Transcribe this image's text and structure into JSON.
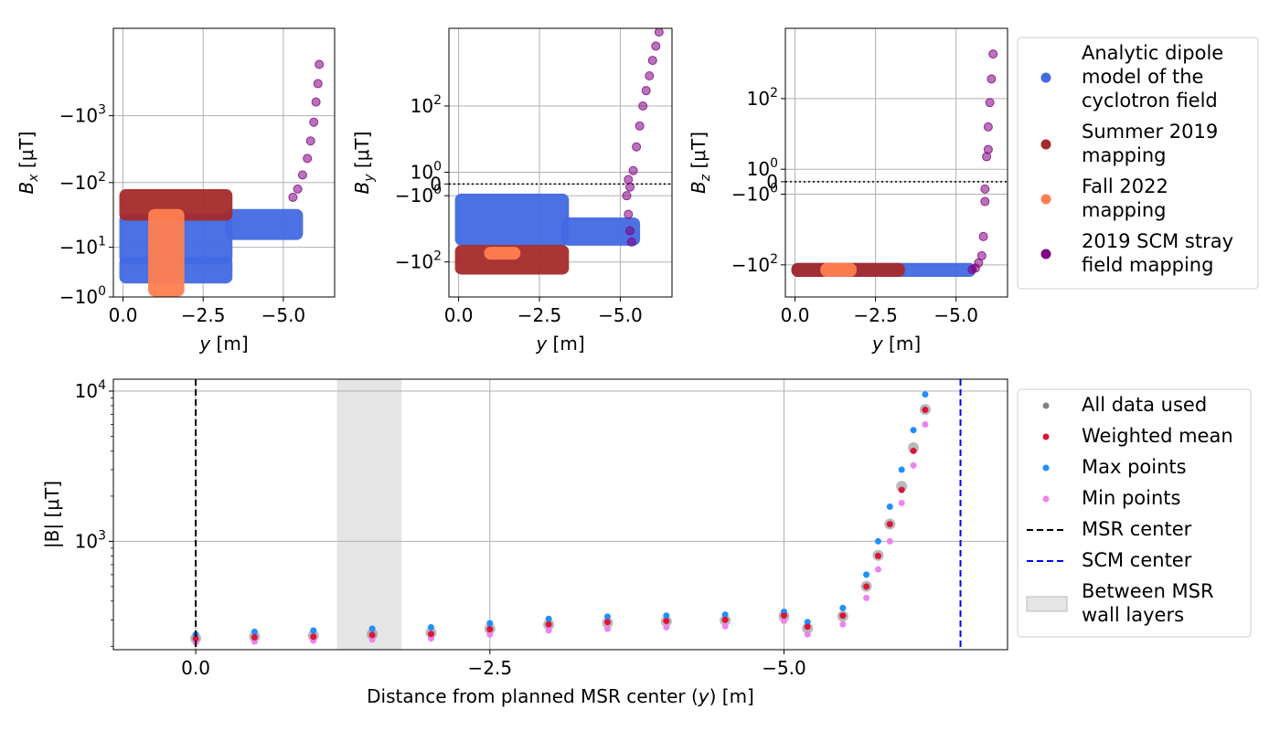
{
  "colors": {
    "dipole": "#4169E1",
    "summer2019": "#A52A2A",
    "fall2022": "#FF7F50",
    "scm2019": "#800080",
    "all_data": "#808080",
    "weighted_mean": "#DC143C",
    "max_points": "#1E90FF",
    "min_points": "#EE82EE",
    "msr_center_line": "#000000",
    "scm_center_line": "#0000FF",
    "msr_wall_band": "#D3D3D3"
  },
  "legend_top": {
    "entries": [
      {
        "key": "dipole",
        "lines": [
          "Analytic dipole",
          "model of the",
          "cyclotron field"
        ]
      },
      {
        "key": "summer2019",
        "lines": [
          "Summer 2019",
          "mapping"
        ]
      },
      {
        "key": "fall2022",
        "lines": [
          "Fall 2022",
          "mapping"
        ]
      },
      {
        "key": "scm2019",
        "lines": [
          "2019 SCM stray",
          "field mapping"
        ]
      }
    ]
  },
  "legend_bottom": {
    "entries": [
      {
        "key": "all_data",
        "kind": "dot",
        "lines": [
          "All data used"
        ]
      },
      {
        "key": "weighted_mean",
        "kind": "dot",
        "lines": [
          "Weighted mean"
        ]
      },
      {
        "key": "max_points",
        "kind": "dot",
        "lines": [
          "Max points"
        ]
      },
      {
        "key": "min_points",
        "kind": "dot",
        "lines": [
          "Min points"
        ]
      },
      {
        "key": "msr_center_line",
        "kind": "dash",
        "lines": [
          "MSR center"
        ]
      },
      {
        "key": "scm_center_line",
        "kind": "dash",
        "lines": [
          "SCM center"
        ]
      },
      {
        "key": "msr_wall_band",
        "kind": "patch",
        "lines": [
          "Between MSR",
          "wall layers"
        ]
      }
    ]
  },
  "chart_data": [
    {
      "id": "bx",
      "type": "scatter",
      "xlabel": "y [m]",
      "ylabel": "B_x [μT]",
      "xlim": [
        0.3,
        -6.6
      ],
      "yscale": "symlog",
      "ylim": [
        -1,
        -20000
      ],
      "x_ticks": [
        0.0,
        -2.5,
        -5.0
      ],
      "x_ticklabels": [
        "0.0",
        "−2.5",
        "−5.0"
      ],
      "y_ticks": [
        -1,
        -10,
        -100,
        -1000
      ],
      "y_ticklabels": [
        "−10^0",
        "−10^1",
        "−10^2",
        "−10^3"
      ],
      "series": [
        {
          "name": "Analytic dipole model of the cyclotron field",
          "key": "dipole",
          "kind": "band",
          "blocks": [
            {
              "x": [
                0,
                -3.3
              ],
              "y_low": -2.6,
              "y_high": -6
            },
            {
              "x": [
                0,
                -3.3
              ],
              "y_low": -6,
              "y_high": -30
            },
            {
              "x": [
                -3.3,
                -5.5
              ],
              "y_low": -15,
              "y_high": -35
            }
          ]
        },
        {
          "name": "Summer 2019 mapping",
          "key": "summer2019",
          "kind": "band",
          "blocks": [
            {
              "x": [
                0,
                -3.3
              ],
              "y_low": -30,
              "y_high": -70
            }
          ]
        },
        {
          "name": "Fall 2022 mapping",
          "key": "fall2022",
          "kind": "band",
          "blocks": [
            {
              "x": [
                -0.9,
                -1.8
              ],
              "y_low": -1.3,
              "y_high": -35
            }
          ]
        },
        {
          "name": "2019 SCM stray field mapping",
          "key": "scm2019",
          "kind": "points",
          "x": [
            -5.3,
            -5.45,
            -5.6,
            -5.75,
            -5.85,
            -5.95,
            -6.02,
            -6.08,
            -6.12
          ],
          "y": [
            -60,
            -80,
            -130,
            -230,
            -420,
            -800,
            -1600,
            -3000,
            -5800
          ]
        }
      ]
    },
    {
      "id": "by",
      "type": "scatter",
      "xlabel": "y [m]",
      "ylabel": "B_y [μT]",
      "xlim": [
        0.3,
        -6.6
      ],
      "yscale": "symlog",
      "ylim": [
        -800,
        10000
      ],
      "x_ticks": [
        0.0,
        -2.5,
        -5.0
      ],
      "x_ticklabels": [
        "0.0",
        "−2.5",
        "−5.0"
      ],
      "y_ticks": [
        100,
        1,
        0,
        -1,
        -100
      ],
      "y_ticklabels": [
        "10^2",
        "10^0",
        "0",
        "−10^0",
        "−10^2"
      ],
      "zero_line": true,
      "series": [
        {
          "name": "Analytic dipole model of the cyclotron field",
          "key": "dipole",
          "kind": "band",
          "blocks": [
            {
              "x": [
                0,
                -3.3
              ],
              "y_low": -1.2,
              "y_high": -30
            },
            {
              "x": [
                -3.3,
                -5.5
              ],
              "y_low": -8,
              "y_high": -30
            }
          ]
        },
        {
          "name": "Summer 2019 mapping",
          "key": "summer2019",
          "kind": "band",
          "blocks": [
            {
              "x": [
                0,
                -3.3
              ],
              "y_low": -45,
              "y_high": -170
            }
          ]
        },
        {
          "name": "Fall 2022 mapping",
          "key": "fall2022",
          "kind": "band",
          "blocks": [
            {
              "x": [
                -0.9,
                -1.8
              ],
              "y_low": -50,
              "y_high": -70
            }
          ]
        },
        {
          "name": "2019 SCM stray field mapping",
          "key": "scm2019",
          "kind": "points",
          "x": [
            -5.2,
            -5.25,
            -5.3,
            -5.35,
            -5.4,
            -5.5,
            -5.6,
            -5.7,
            -5.8,
            -5.9,
            -6.0,
            -6.1,
            -6.2,
            -5.25,
            -5.3
          ],
          "y": [
            -1,
            -5,
            -15,
            -30,
            1.2,
            8,
            30,
            100,
            250,
            600,
            1500,
            3500,
            8000,
            0.3,
            -0.2
          ]
        }
      ]
    },
    {
      "id": "bz",
      "type": "scatter",
      "xlabel": "y [m]",
      "ylabel": "B_z [μT]",
      "xlim": [
        0.3,
        -6.6
      ],
      "yscale": "symlog",
      "ylim": [
        -600,
        5000
      ],
      "x_ticks": [
        0.0,
        -2.5,
        -5.0
      ],
      "x_ticklabels": [
        "0.0",
        "−2.5",
        "−5.0"
      ],
      "y_ticks": [
        100,
        1,
        0,
        -1,
        -100
      ],
      "y_ticklabels": [
        "10^2",
        "10^0",
        "0",
        "−10^0",
        "−10^2"
      ],
      "zero_line": true,
      "series": [
        {
          "name": "Analytic dipole model of the cyclotron field",
          "key": "dipole",
          "kind": "band",
          "blocks": [
            {
              "x": [
                0,
                -5.5
              ],
              "y_low": -110,
              "y_high": -160
            }
          ]
        },
        {
          "name": "Summer 2019 mapping",
          "key": "summer2019",
          "kind": "band",
          "blocks": [
            {
              "x": [
                0,
                -3.3
              ],
              "y_low": -110,
              "y_high": -160
            }
          ]
        },
        {
          "name": "Fall 2022 mapping",
          "key": "fall2022",
          "kind": "band",
          "blocks": [
            {
              "x": [
                -0.9,
                -1.8
              ],
              "y_low": -110,
              "y_high": -160
            }
          ]
        },
        {
          "name": "2019 SCM stray field mapping",
          "key": "scm2019",
          "kind": "points",
          "x": [
            -5.5,
            -5.6,
            -5.7,
            -5.8,
            -5.85,
            -5.9,
            -5.95,
            -6.0,
            -6.05,
            -6.1,
            -6.15,
            -5.9,
            -6.0
          ],
          "y": [
            -130,
            -120,
            -90,
            -60,
            -20,
            -2,
            3,
            20,
            80,
            300,
            1200,
            -0.5,
            5
          ]
        }
      ]
    },
    {
      "id": "bmag",
      "type": "scatter",
      "xlabel": "Distance from planned MSR center (y) [m]",
      "ylabel": "|B| [μT]",
      "xlim": [
        0.7,
        -6.9
      ],
      "yscale": "log",
      "ylim": [
        190,
        12000
      ],
      "x_ticks": [
        0.0,
        -2.5,
        -5.0
      ],
      "x_ticklabels": [
        "0.0",
        "−2.5",
        "−5.0"
      ],
      "y_ticks": [
        1000,
        10000
      ],
      "y_ticklabels": [
        "10^3",
        "10^4"
      ],
      "vlines": [
        {
          "key": "msr_center_line",
          "x": 0.0
        },
        {
          "key": "scm_center_line",
          "x": -6.5
        }
      ],
      "band": {
        "key": "msr_wall_band",
        "x": [
          -1.2,
          -1.75
        ]
      },
      "profile": {
        "x": [
          0.0,
          -0.5,
          -1.0,
          -1.5,
          -2.0,
          -2.5,
          -3.0,
          -3.5,
          -4.0,
          -4.5,
          -5.0,
          -5.2,
          -5.5,
          -5.7,
          -5.8,
          -5.9,
          -6.0,
          -6.1,
          -6.2
        ],
        "weighted_mean": [
          225,
          230,
          232,
          238,
          242,
          260,
          280,
          290,
          295,
          300,
          320,
          270,
          320,
          500,
          800,
          1300,
          2200,
          4000,
          7500
        ],
        "max_points": [
          240,
          250,
          255,
          262,
          268,
          285,
          305,
          315,
          320,
          325,
          340,
          290,
          360,
          600,
          1000,
          1700,
          3000,
          5500,
          9500
        ],
        "min_points": [
          212,
          215,
          218,
          222,
          226,
          240,
          255,
          262,
          268,
          272,
          295,
          240,
          280,
          420,
          650,
          1000,
          1800,
          3200,
          6000
        ]
      }
    }
  ]
}
